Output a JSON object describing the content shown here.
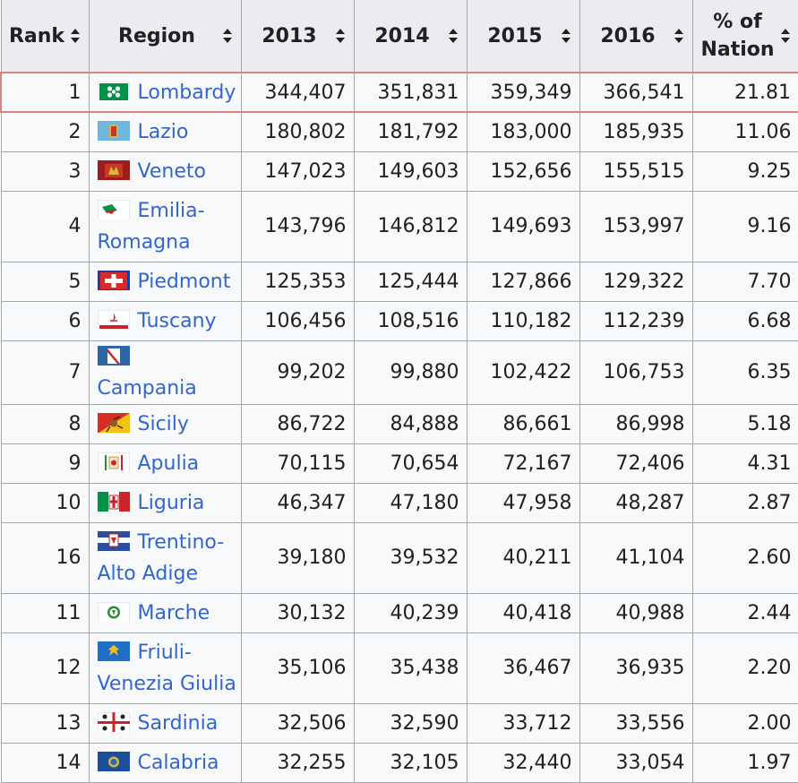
{
  "headers": [
    {
      "label": "Rank"
    },
    {
      "label": "Region"
    },
    {
      "label": "2013"
    },
    {
      "label": "2014"
    },
    {
      "label": "2015"
    },
    {
      "label": "2016"
    },
    {
      "label": "% of Nation",
      "line1": "% of",
      "line2": "Nation"
    }
  ],
  "rows": [
    {
      "rank": "1",
      "region": "Lombardy",
      "flag": "lombardy-flag-icon",
      "y2013": "344,407",
      "y2014": "351,831",
      "y2015": "359,349",
      "y2016": "366,541",
      "pct": "21.81",
      "highlighted": true
    },
    {
      "rank": "2",
      "region": "Lazio",
      "flag": "lazio-flag-icon",
      "y2013": "180,802",
      "y2014": "181,792",
      "y2015": "183,000",
      "y2016": "185,935",
      "pct": "11.06"
    },
    {
      "rank": "3",
      "region": "Veneto",
      "flag": "veneto-flag-icon",
      "y2013": "147,023",
      "y2014": "149,603",
      "y2015": "152,656",
      "y2016": "155,515",
      "pct": "9.25"
    },
    {
      "rank": "4",
      "region": "Emilia-Romagna",
      "region_line1": "Emilia-",
      "region_line2": "Romagna",
      "flag": "emilia-romagna-flag-icon",
      "y2013": "143,796",
      "y2014": "146,812",
      "y2015": "149,693",
      "y2016": "153,997",
      "pct": "9.16"
    },
    {
      "rank": "5",
      "region": "Piedmont",
      "flag": "piedmont-flag-icon",
      "y2013": "125,353",
      "y2014": "125,444",
      "y2015": "127,866",
      "y2016": "129,322",
      "pct": "7.70"
    },
    {
      "rank": "6",
      "region": "Tuscany",
      "flag": "tuscany-flag-icon",
      "y2013": "106,456",
      "y2014": "108,516",
      "y2015": "110,182",
      "y2016": "112,239",
      "pct": "6.68"
    },
    {
      "rank": "7",
      "region": "Campania",
      "flag": "campania-flag-icon",
      "y2013": "99,202",
      "y2014": "99,880",
      "y2015": "102,422",
      "y2016": "106,753",
      "pct": "6.35"
    },
    {
      "rank": "8",
      "region": "Sicily",
      "flag": "sicily-flag-icon",
      "y2013": "86,722",
      "y2014": "84,888",
      "y2015": "86,661",
      "y2016": "86,998",
      "pct": "5.18"
    },
    {
      "rank": "9",
      "region": "Apulia",
      "flag": "apulia-flag-icon",
      "y2013": "70,115",
      "y2014": "70,654",
      "y2015": "72,167",
      "y2016": "72,406",
      "pct": "4.31"
    },
    {
      "rank": "10",
      "region": "Liguria",
      "flag": "liguria-flag-icon",
      "y2013": "46,347",
      "y2014": "47,180",
      "y2015": "47,958",
      "y2016": "48,287",
      "pct": "2.87"
    },
    {
      "rank": "16",
      "region": "Trentino-Alto Adige",
      "region_line1": "Trentino-",
      "region_line2": "Alto Adige",
      "flag": "trentino-flag-icon",
      "y2013": "39,180",
      "y2014": "39,532",
      "y2015": "40,211",
      "y2016": "41,104",
      "pct": "2.60"
    },
    {
      "rank": "11",
      "region": "Marche",
      "flag": "marche-flag-icon",
      "y2013": "30,132",
      "y2014": "40,239",
      "y2015": "40,418",
      "y2016": "40,988",
      "pct": "2.44"
    },
    {
      "rank": "12",
      "region": "Friuli-Venezia Giulia",
      "region_line1": "Friuli-",
      "region_line2": "Venezia Giulia",
      "flag": "friuli-flag-icon",
      "y2013": "35,106",
      "y2014": "35,438",
      "y2015": "36,467",
      "y2016": "36,935",
      "pct": "2.20"
    },
    {
      "rank": "13",
      "region": "Sardinia",
      "flag": "sardinia-flag-icon",
      "y2013": "32,506",
      "y2014": "32,590",
      "y2015": "33,712",
      "y2016": "33,556",
      "pct": "2.00"
    },
    {
      "rank": "14",
      "region": "Calabria",
      "flag": "calabria-flag-icon",
      "y2013": "32,255",
      "y2014": "32,105",
      "y2015": "32,440",
      "y2016": "33,054",
      "pct": "1.97"
    }
  ],
  "colors": {
    "link": "#3366cc",
    "header_bg": "#eaecf0",
    "cell_bg": "#f8f9fa",
    "border": "#a2a9b1",
    "highlight_border": "#d8857f"
  }
}
